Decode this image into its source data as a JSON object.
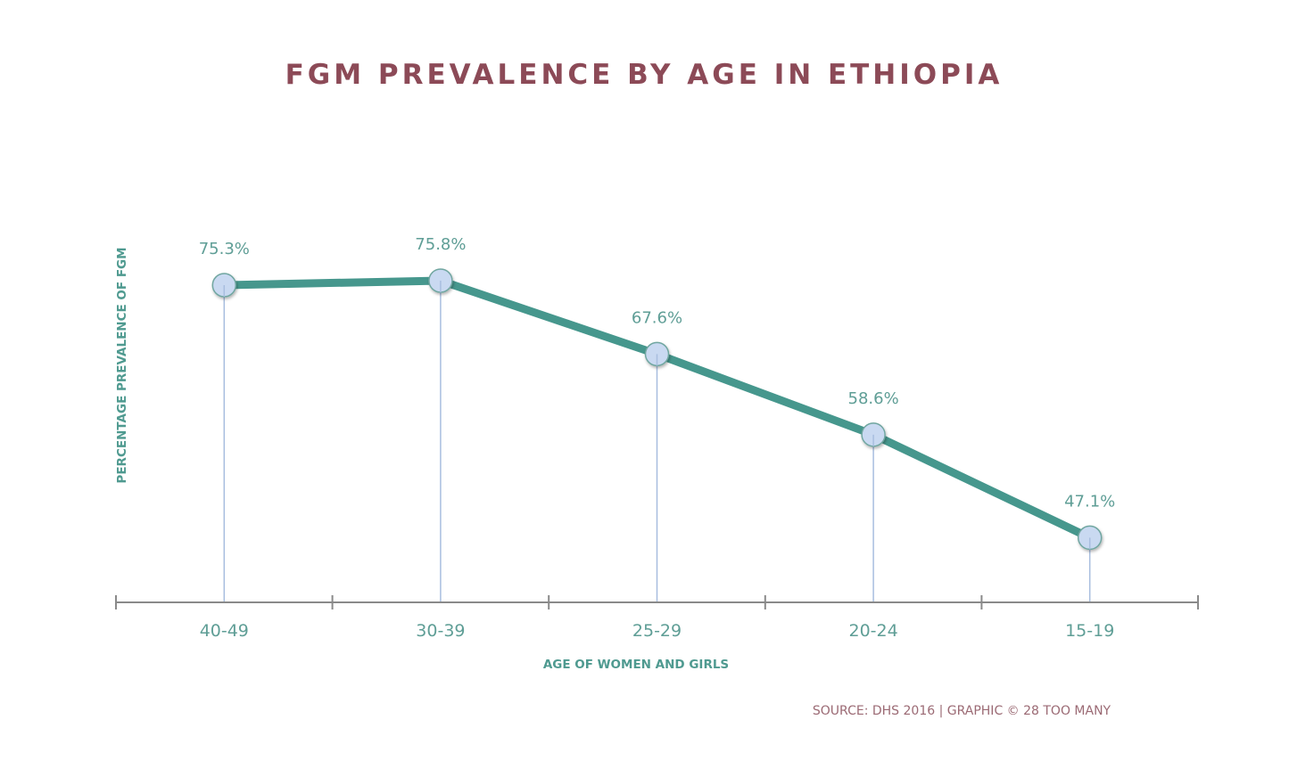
{
  "chart_data": {
    "type": "line",
    "title": "FGM PREVALENCE BY AGE IN ETHIOPIA",
    "xlabel": "AGE OF WOMEN AND GIRLS",
    "ylabel": "PERCENTAGE PREVALENCE OF FGM",
    "categories": [
      "40-49",
      "30-39",
      "25-29",
      "20-24",
      "15-19"
    ],
    "values": [
      75.3,
      75.8,
      67.6,
      58.6,
      47.1
    ],
    "value_labels": [
      "75.3%",
      "75.8%",
      "67.6%",
      "58.6%",
      "47.1%"
    ],
    "grid": false,
    "legend": "none",
    "source": "SOURCE: DHS 2016 | GRAPHIC © 28 TOO MANY",
    "colors": {
      "line": "#46978d",
      "marker_fill": "#c9d9f1",
      "drop_line": "#a8bedf",
      "axis": "#8a8a8a",
      "title": "#8c4a57",
      "label": "#5f9e96",
      "source": "#9b6a74"
    }
  }
}
